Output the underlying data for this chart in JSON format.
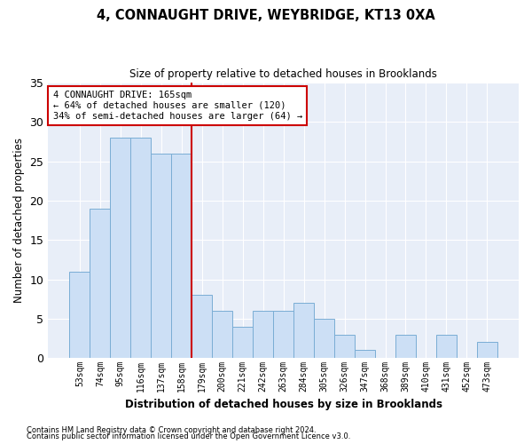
{
  "title": "4, CONNAUGHT DRIVE, WEYBRIDGE, KT13 0XA",
  "subtitle": "Size of property relative to detached houses in Brooklands",
  "xlabel": "Distribution of detached houses by size in Brooklands",
  "ylabel": "Number of detached properties",
  "bin_labels": [
    "53sqm",
    "74sqm",
    "95sqm",
    "116sqm",
    "137sqm",
    "158sqm",
    "179sqm",
    "200sqm",
    "221sqm",
    "242sqm",
    "263sqm",
    "284sqm",
    "305sqm",
    "326sqm",
    "347sqm",
    "368sqm",
    "389sqm",
    "410sqm",
    "431sqm",
    "452sqm",
    "473sqm"
  ],
  "values": [
    11,
    19,
    28,
    28,
    26,
    26,
    8,
    6,
    4,
    6,
    6,
    7,
    5,
    3,
    1,
    0,
    3,
    0,
    3,
    0,
    2
  ],
  "bar_color": "#ccdff5",
  "bar_edge_color": "#7aadd4",
  "vline_x": 6,
  "vline_color": "#cc0000",
  "annotation_text": "4 CONNAUGHT DRIVE: 165sqm\n← 64% of detached houses are smaller (120)\n34% of semi-detached houses are larger (64) →",
  "annotation_box_color": "#ffffff",
  "annotation_box_edge": "#cc0000",
  "ylim": [
    0,
    35
  ],
  "yticks": [
    0,
    5,
    10,
    15,
    20,
    25,
    30,
    35
  ],
  "footer_line1": "Contains HM Land Registry data © Crown copyright and database right 2024.",
  "footer_line2": "Contains public sector information licensed under the Open Government Licence v3.0.",
  "bg_color": "#ffffff",
  "plot_bg_color": "#e8eef8",
  "grid_color": "#ffffff"
}
